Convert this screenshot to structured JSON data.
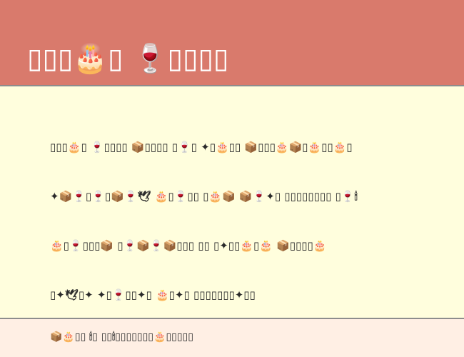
{
  "header": {
    "title": "▯▯▯🎂▯  🍷▯▯▯▯"
  },
  "content": {
    "lines": [
      "▯▯▯🎂▯  🍷▯▯▯▯  📦▯▯▯▯  ▯🍷▯  ✦▯🎂▯▯  📦▯▯▯🎂📦▯🎂▯▯🎂▯",
      "✦📦🍷▯🍷▯📦🍷🕊  🎂▯🍷▯▯  ▯🎂📦  📦🍷✦▯  ▯▯▯▯▯▯▯▯  ▯🍷🕯",
      "🎂▯🍷▯▯▯📦  ▯🍷📦🍷📦▯▯▯  ▯▯  ▯✦▯▯🎂▯🎂  📦▯▯▯▯🎂",
      "▯✦🕊▯✦  ✦▯🍷▯▯✦▯  🎂▯✦▯  ▯▯▯▯▯▯▯✦▯▯"
    ]
  },
  "footer": {
    "text": "📦🎂▯▯  🕯▯  ▯▯🕯▯▯▯▯▯▯▯🎂▯▯▯▯▯"
  },
  "colors": {
    "header_background": "#d97a6c",
    "page_background": "#fffedd",
    "footer_background": "#ffefe4",
    "divider": "#8d8d8d",
    "text": "#2a2a2a",
    "header_text": "#ffffff"
  }
}
